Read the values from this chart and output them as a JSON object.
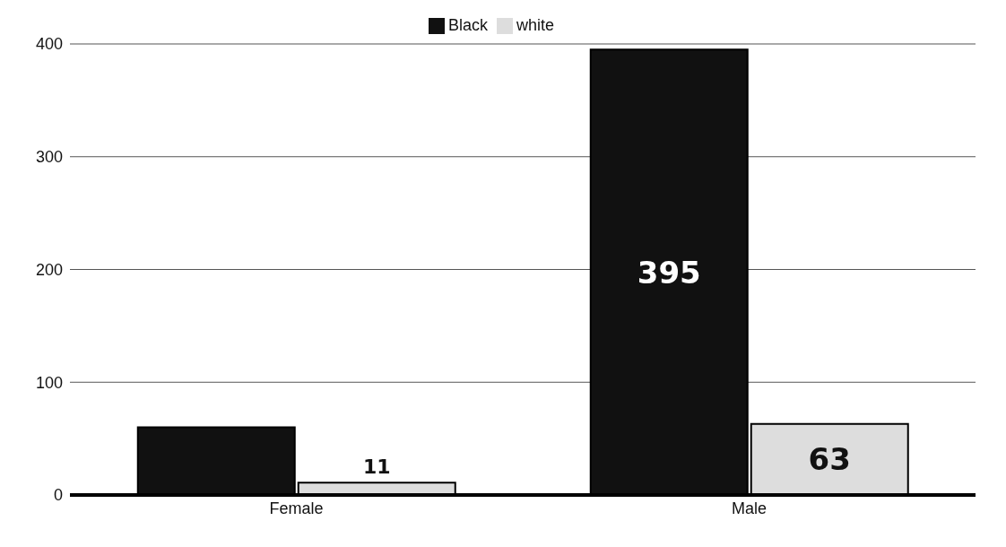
{
  "chart_data": {
    "type": "bar",
    "categories": [
      "Female",
      "Male"
    ],
    "series": [
      {
        "name": "Black",
        "color": "#111111",
        "values": [
          60,
          395
        ],
        "value_labels": [
          null,
          "395"
        ]
      },
      {
        "name": "white",
        "color": "#dddddd",
        "values": [
          11,
          63
        ],
        "value_labels": [
          "11",
          "63"
        ]
      }
    ],
    "ylim": [
      0,
      400
    ],
    "yticks": [
      0,
      100,
      200,
      300,
      400
    ],
    "grid": "y",
    "legend": "top"
  }
}
